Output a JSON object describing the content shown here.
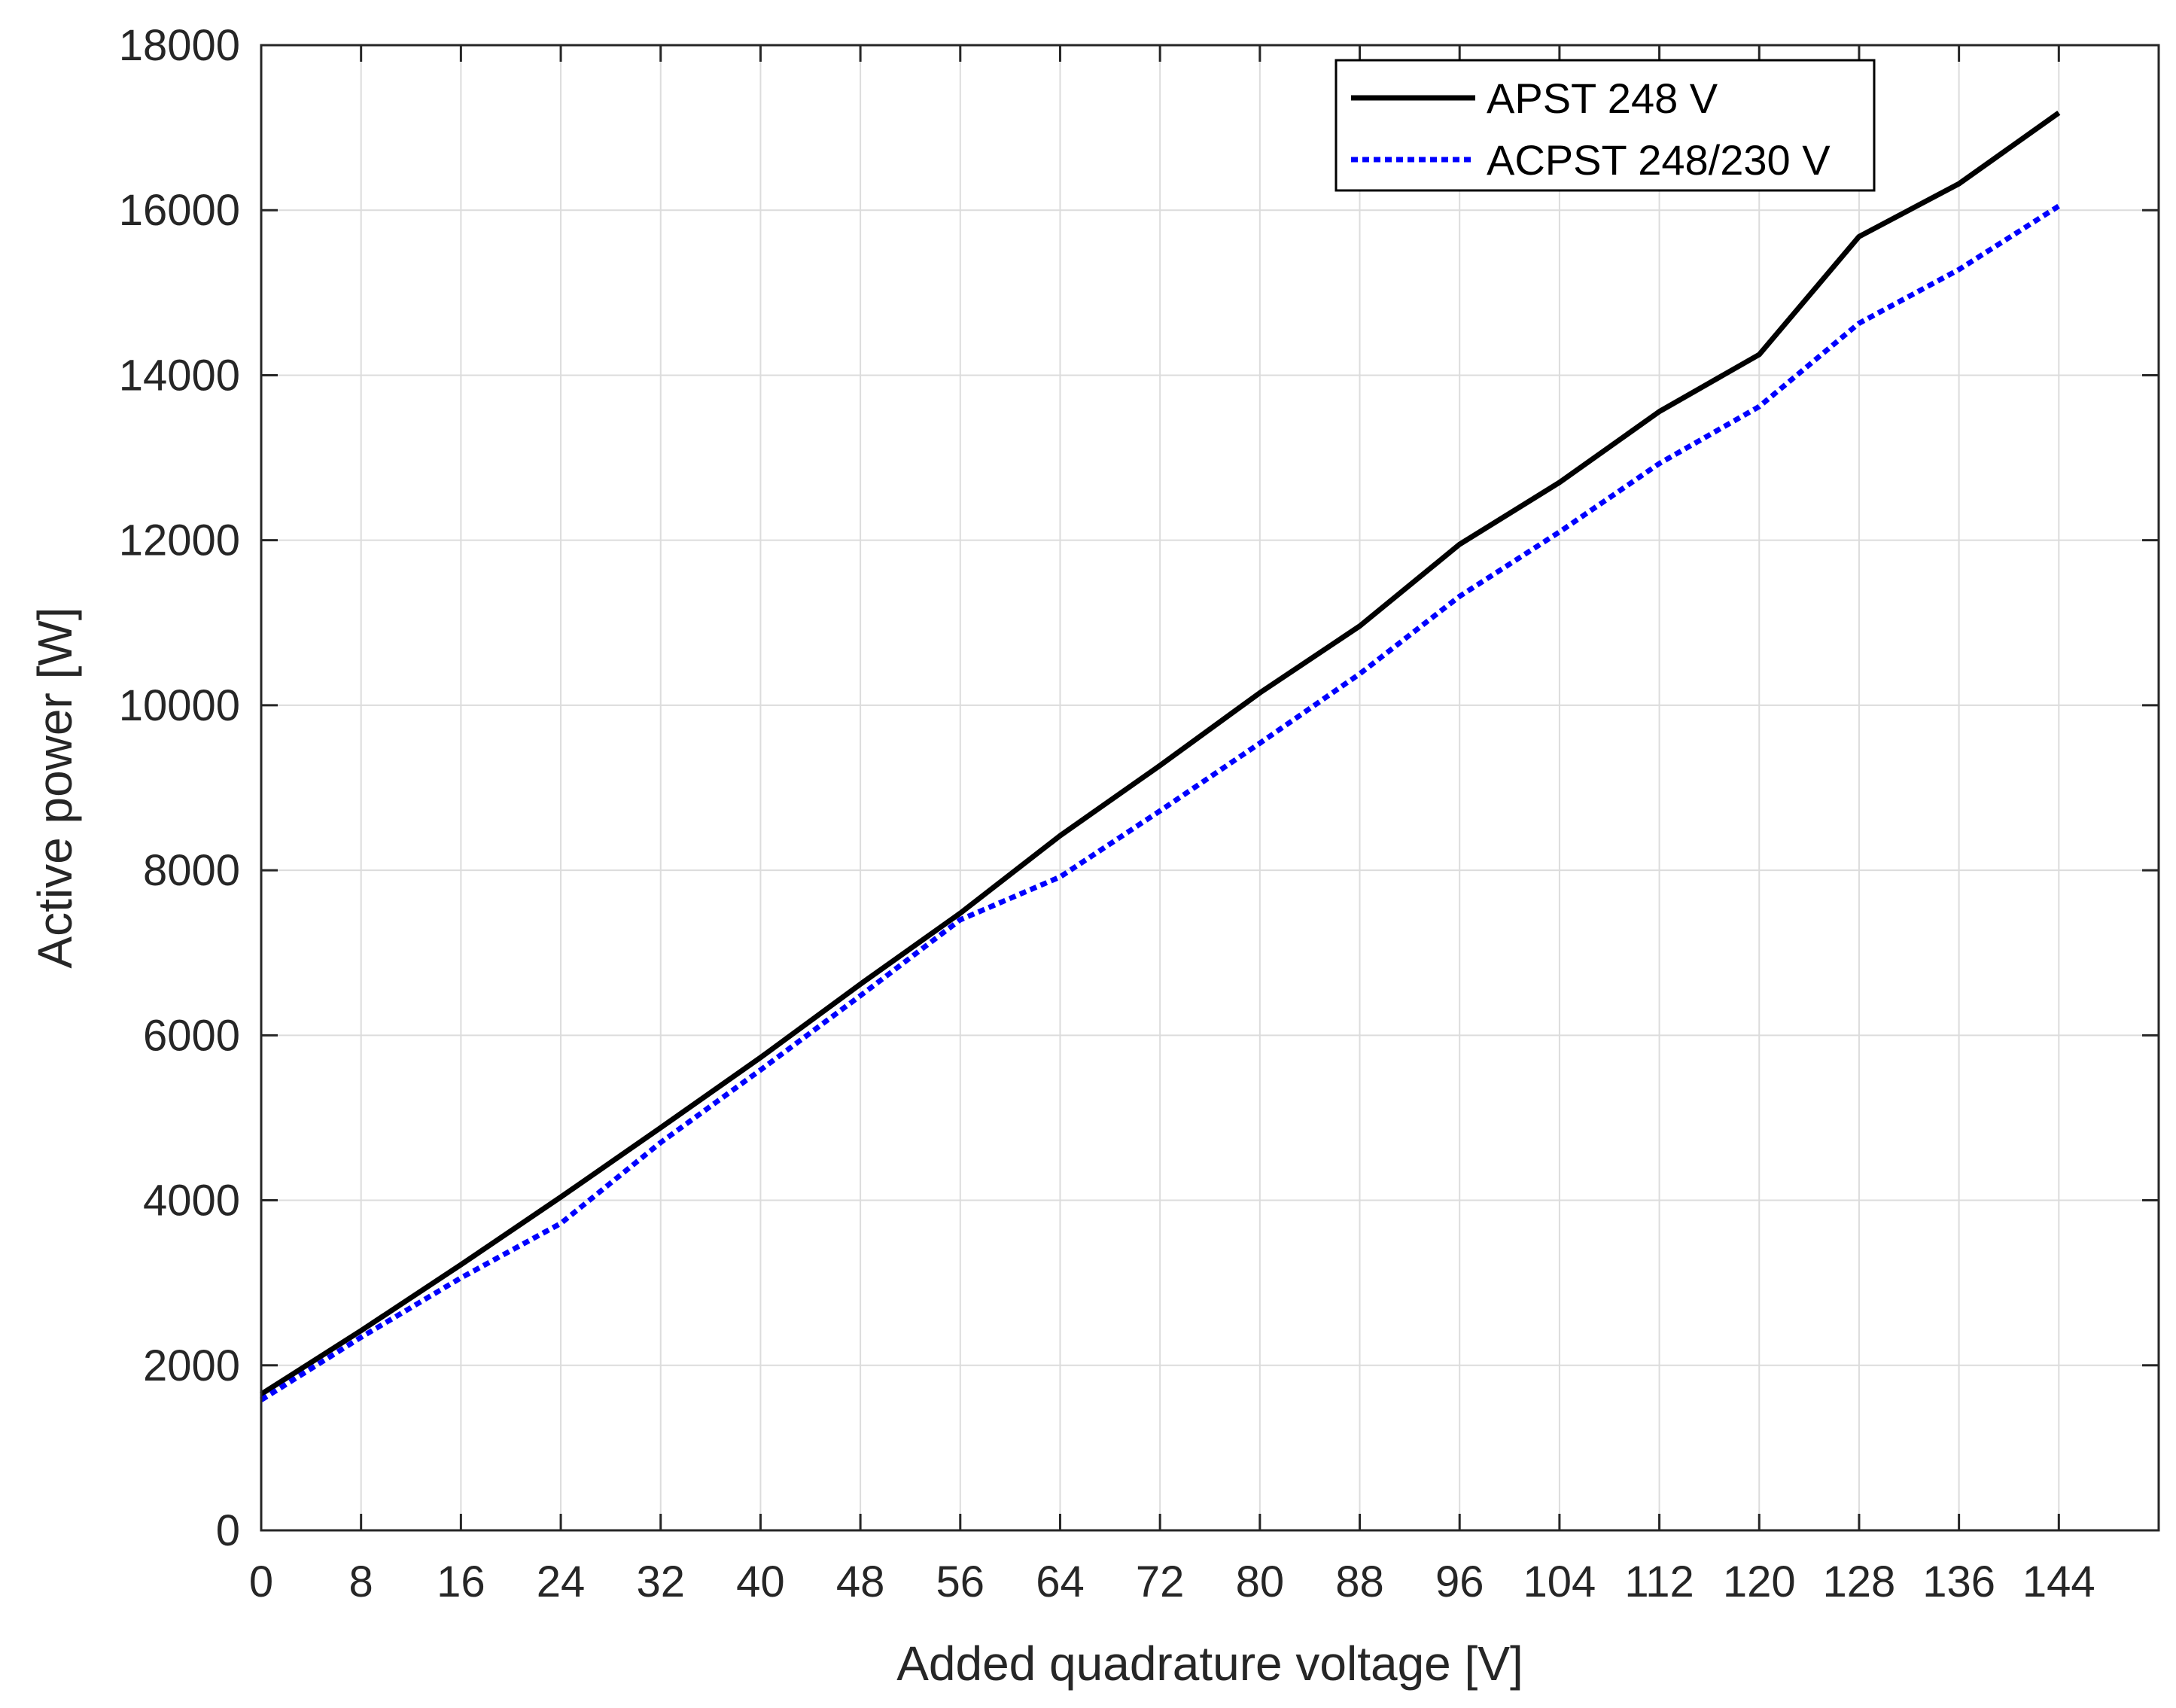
{
  "chart_data": {
    "type": "line",
    "xlabel": "Added quadrature voltage [V]",
    "ylabel": "Active power [W]",
    "xlim": [
      0,
      152
    ],
    "ylim": [
      0,
      18000
    ],
    "xticks": [
      0,
      8,
      16,
      24,
      32,
      40,
      48,
      56,
      64,
      72,
      80,
      88,
      96,
      104,
      112,
      120,
      128,
      136,
      144
    ],
    "xtick_labels": [
      "0",
      "8",
      "16",
      "24",
      "32",
      "40",
      "48",
      "56",
      "64",
      "72",
      "80",
      "88",
      "96",
      "104",
      "112",
      "120",
      "128",
      "136",
      "144"
    ],
    "yticks": [
      0,
      2000,
      4000,
      6000,
      8000,
      10000,
      12000,
      14000,
      16000,
      18000
    ],
    "ytick_labels": [
      "0",
      "2000",
      "4000",
      "6000",
      "8000",
      "10000",
      "12000",
      "14000",
      "16000",
      "18000"
    ],
    "grid": true,
    "legend_position": "top-right",
    "x": [
      0,
      8,
      16,
      24,
      32,
      40,
      48,
      56,
      64,
      72,
      80,
      88,
      96,
      104,
      112,
      120,
      128,
      136,
      144
    ],
    "series": [
      {
        "name": "APST 248 V",
        "color": "#000000",
        "style": "solid",
        "values": [
          1650,
          2420,
          3220,
          4040,
          4880,
          5730,
          6620,
          7480,
          8420,
          9270,
          10150,
          10960,
          11950,
          12700,
          13560,
          14250,
          15680,
          16320,
          17180
        ]
      },
      {
        "name": "ACPST 248/230 V",
        "color": "#0000ff",
        "style": "dotted",
        "values": [
          1580,
          2340,
          3060,
          3720,
          4700,
          5580,
          6480,
          7400,
          7920,
          8720,
          9540,
          10380,
          11320,
          12100,
          12930,
          13620,
          14630,
          15280,
          16050
        ]
      }
    ]
  }
}
